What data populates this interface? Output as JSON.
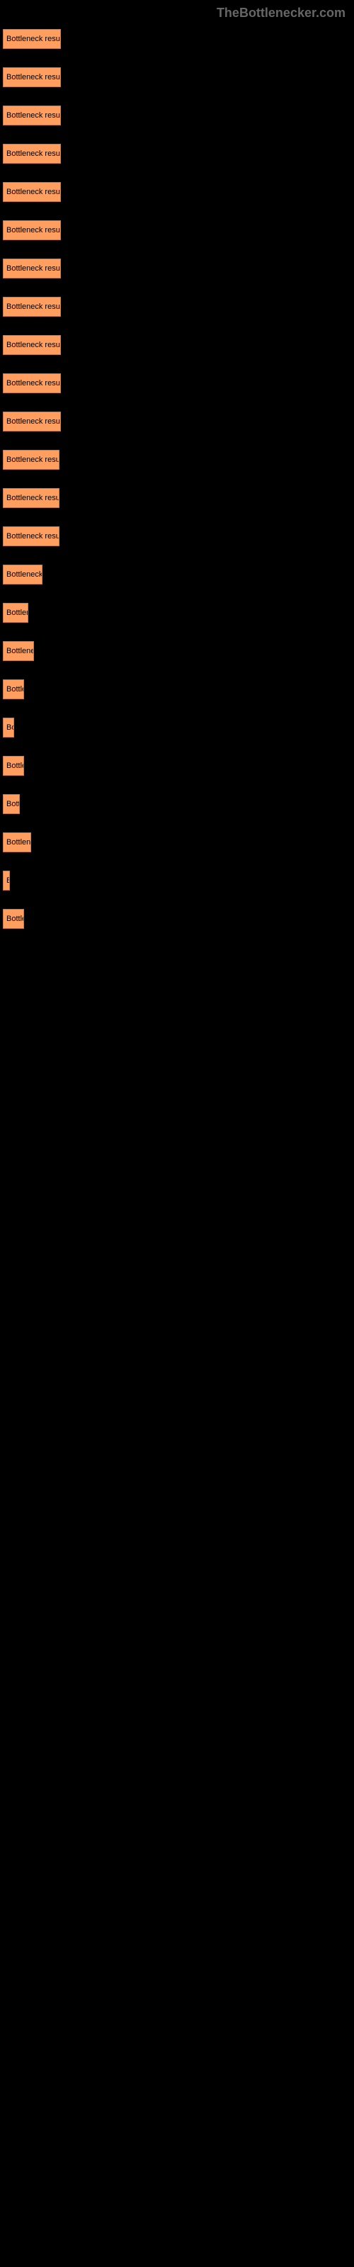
{
  "header": {
    "text": "TheBottlenecker.com"
  },
  "chart": {
    "type": "bar",
    "bar_color": "#ff9e5e",
    "bar_border_color": "#cc7a44",
    "background_color": "#000000",
    "label_color": "#000000",
    "label_fontsize": 11,
    "bars": [
      {
        "label": "Bottleneck result",
        "width": 82
      },
      {
        "label": "Bottleneck result",
        "width": 82
      },
      {
        "label": "Bottleneck result",
        "width": 82
      },
      {
        "label": "Bottleneck result",
        "width": 82
      },
      {
        "label": "Bottleneck result",
        "width": 82
      },
      {
        "label": "Bottleneck result",
        "width": 82
      },
      {
        "label": "Bottleneck result",
        "width": 82
      },
      {
        "label": "Bottleneck result",
        "width": 82
      },
      {
        "label": "Bottleneck result",
        "width": 82
      },
      {
        "label": "Bottleneck result",
        "width": 82
      },
      {
        "label": "Bottleneck result",
        "width": 82
      },
      {
        "label": "Bottleneck result",
        "width": 80
      },
      {
        "label": "Bottleneck result",
        "width": 80
      },
      {
        "label": "Bottleneck result",
        "width": 80
      },
      {
        "label": "Bottleneck r",
        "width": 56
      },
      {
        "label": "Bottlen",
        "width": 36
      },
      {
        "label": "Bottleneck",
        "width": 44
      },
      {
        "label": "Bottle",
        "width": 30
      },
      {
        "label": "Bo",
        "width": 16
      },
      {
        "label": "Bottle",
        "width": 30
      },
      {
        "label": "Bott",
        "width": 24
      },
      {
        "label": "Bottlene",
        "width": 40
      },
      {
        "label": "B",
        "width": 10
      },
      {
        "label": "Bottle",
        "width": 30
      }
    ]
  }
}
